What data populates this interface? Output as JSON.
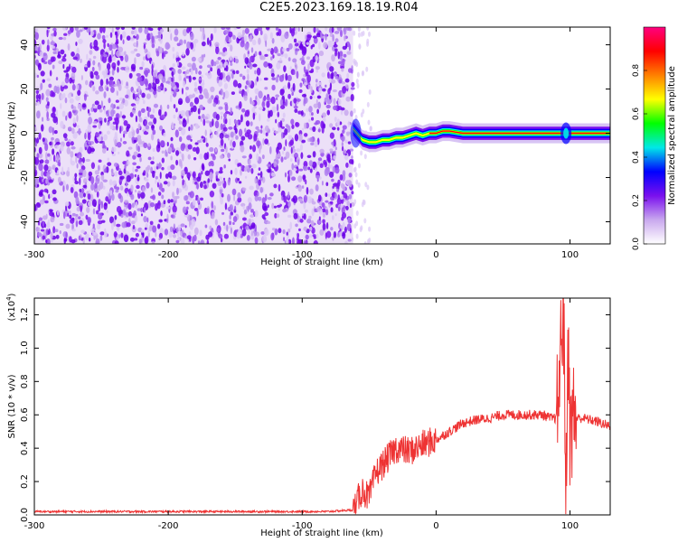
{
  "title": "C2E5.2023.169.18.19.R04",
  "chart_data": [
    {
      "type": "heatmap",
      "xlabel": "Height of straight line (km)",
      "ylabel": "Frequency (Hz)",
      "xlim": [
        -300,
        130
      ],
      "ylim": [
        -50,
        48
      ],
      "xticks": [
        -300,
        -200,
        -100,
        0,
        100
      ],
      "xtick_labels": [
        "-300",
        "-200",
        "-100",
        "0",
        "100"
      ],
      "yticks": [
        -40,
        -20,
        0,
        20,
        40
      ],
      "ytick_labels": [
        "-40",
        "-20",
        "0",
        "20",
        "40"
      ],
      "noise_region_x": [
        -300,
        -62
      ],
      "signal_trace": {
        "x": [
          -62,
          -55,
          -50,
          -45,
          -40,
          -35,
          -30,
          -25,
          -20,
          -15,
          -10,
          -5,
          0,
          5,
          10,
          20,
          40,
          60,
          80,
          95,
          100,
          110,
          130
        ],
        "y": [
          2,
          -3,
          -4,
          -4,
          -3,
          -3,
          -2,
          -2,
          -1,
          0,
          -1,
          0,
          0,
          1,
          1,
          0,
          0,
          0,
          0,
          0,
          0,
          0,
          0
        ]
      },
      "colorbar": {
        "label": "Normalized spectral amplitude",
        "range": [
          0,
          1
        ],
        "ticks": [
          0.0,
          0.2,
          0.4,
          0.6,
          0.8
        ],
        "tick_labels": [
          "0.0",
          "0.2",
          "0.4",
          "0.6",
          "0.8"
        ],
        "colors": [
          "#ffffff",
          "#c9a8ee",
          "#7a10ee",
          "#0000ff",
          "#00e8e8",
          "#00ff00",
          "#ffff00",
          "#ff8000",
          "#ff0000",
          "#ff0080"
        ]
      },
      "grid": false
    },
    {
      "type": "line",
      "xlabel": "Height of straight line (km)",
      "ylabel": "SNR (10 * v/v)",
      "y_multiplier_label": "(x10",
      "y_multiplier_exp": "4",
      "xlim": [
        -300,
        130
      ],
      "ylim": [
        0,
        1.3
      ],
      "xticks": [
        -300,
        -200,
        -100,
        0,
        100
      ],
      "xtick_labels": [
        "-300",
        "-200",
        "-100",
        "0",
        "100"
      ],
      "yticks": [
        0.0,
        0.2,
        0.4,
        0.6,
        0.8,
        1.0,
        1.2
      ],
      "ytick_labels": [
        "0.0",
        "0.2",
        "0.4",
        "0.6",
        "0.8",
        "1.0",
        "1.2"
      ],
      "series": [
        {
          "color": "#ee3333",
          "x": [
            -300,
            -260,
            -220,
            -180,
            -140,
            -100,
            -80,
            -62,
            -58,
            -55,
            -50,
            -45,
            -40,
            -35,
            -30,
            -20,
            -10,
            0,
            10,
            20,
            30,
            40,
            50,
            60,
            70,
            80,
            85,
            90,
            92,
            95,
            97,
            99,
            100,
            102,
            105,
            110,
            120,
            130
          ],
          "y": [
            0.02,
            0.02,
            0.02,
            0.02,
            0.02,
            0.02,
            0.02,
            0.03,
            0.1,
            0.15,
            0.1,
            0.25,
            0.3,
            0.35,
            0.4,
            0.38,
            0.42,
            0.45,
            0.5,
            0.55,
            0.57,
            0.58,
            0.6,
            0.6,
            0.6,
            0.6,
            0.58,
            0.58,
            0.8,
            1.3,
            0.1,
            1.2,
            0.4,
            0.6,
            0.58,
            0.58,
            0.56,
            0.53
          ]
        }
      ],
      "grid": false
    }
  ]
}
